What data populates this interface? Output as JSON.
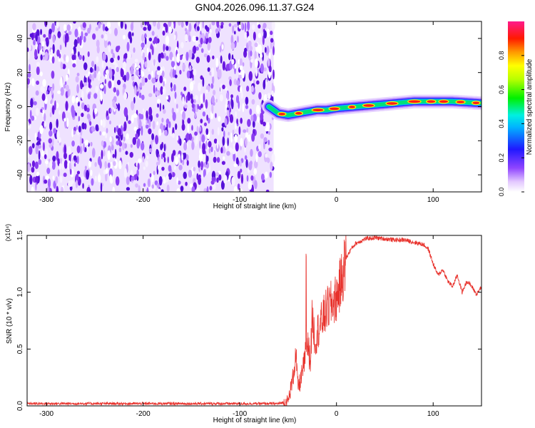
{
  "title": "GN04.2026.096.11.37.G24",
  "chart_data": [
    {
      "type": "heatmap",
      "xlabel": "Height of straight line (km)",
      "ylabel": "Frequency (Hz)",
      "xlim": [
        -320,
        150
      ],
      "ylim": [
        -50,
        50
      ],
      "xticks": [
        -300,
        -200,
        -100,
        0,
        100
      ],
      "yticks": [
        -40,
        -20,
        0,
        20,
        40
      ],
      "colorbar": {
        "label": "Normalized spectral amplitude",
        "range": [
          0,
          1
        ],
        "ticks": [
          "0.0",
          "0.2",
          "0.4",
          "0.6",
          "0.8"
        ],
        "colormap": "rainbow (white-violet-blue-cyan-green-yellow-red-magenta)"
      },
      "noise_region_x": [
        -320,
        -65
      ],
      "signal_ridge": {
        "x": [
          -70,
          -60,
          -50,
          -40,
          -30,
          -20,
          -10,
          0,
          20,
          40,
          60,
          80,
          100,
          120,
          150
        ],
        "freq": [
          0,
          -4,
          -5,
          -4,
          -3,
          -2,
          -2,
          -1,
          0,
          1,
          2,
          3,
          3,
          3,
          2
        ]
      }
    },
    {
      "type": "line",
      "xlabel": "Height of straight line (km)",
      "ylabel": "SNR (10 * v/v)",
      "y_multiplier": "(x10⁴)",
      "xlim": [
        -320,
        150
      ],
      "ylim": [
        0,
        1.5
      ],
      "xticks": [
        -300,
        -200,
        -100,
        0,
        100
      ],
      "yticks": [
        0.0,
        0.5,
        1.0,
        1.5
      ],
      "color": "#e8322c",
      "series": [
        {
          "x": [
            -320,
            -250,
            -200,
            -150,
            -100,
            -60,
            -50,
            -45,
            -42,
            -40,
            -38,
            -35,
            -30,
            -27,
            -25,
            -22,
            -20,
            -15,
            -10,
            -5,
            0,
            5,
            10,
            15,
            20,
            30,
            40,
            50,
            60,
            70,
            80,
            90,
            95,
            100,
            105,
            110,
            115,
            120,
            125,
            130,
            135,
            140,
            145,
            150
          ],
          "values": [
            0.02,
            0.02,
            0.02,
            0.02,
            0.02,
            0.02,
            0.04,
            0.25,
            0.45,
            0.18,
            0.2,
            0.3,
            0.55,
            0.4,
            0.8,
            0.55,
            0.65,
            0.75,
            0.85,
            0.9,
            0.95,
            1.1,
            1.3,
            1.38,
            1.43,
            1.47,
            1.48,
            1.47,
            1.46,
            1.46,
            1.44,
            1.42,
            1.38,
            1.25,
            1.15,
            1.2,
            1.1,
            1.05,
            1.15,
            1.0,
            1.1,
            1.05,
            0.98,
            1.05
          ]
        }
      ]
    }
  ]
}
